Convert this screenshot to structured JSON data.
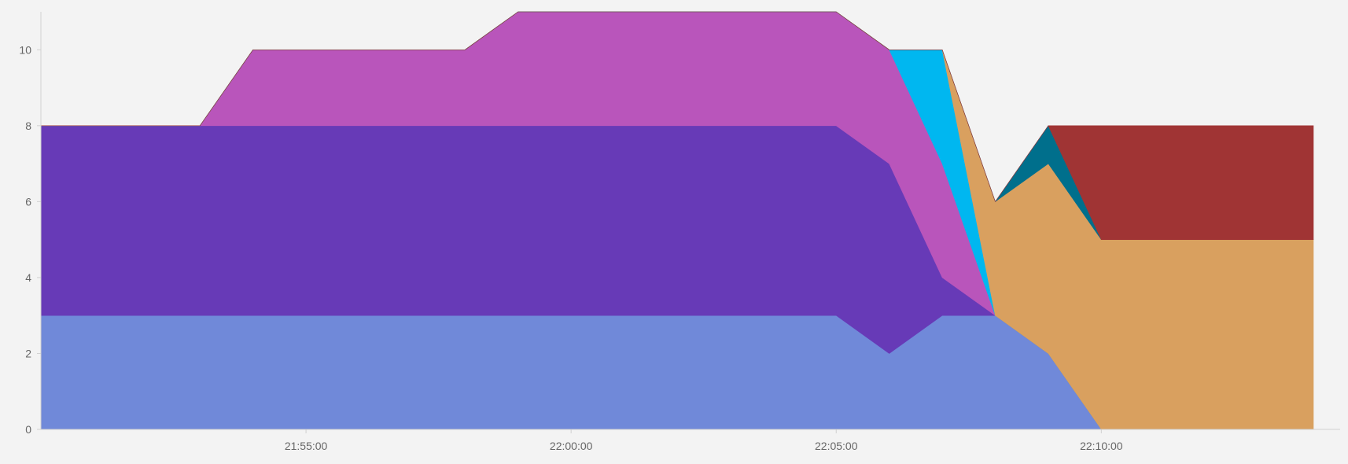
{
  "chart_data": {
    "type": "area",
    "stacked": true,
    "x": [
      "21:50:00",
      "21:51:00",
      "21:52:00",
      "21:53:00",
      "21:54:00",
      "21:55:00",
      "21:56:00",
      "21:57:00",
      "21:58:00",
      "21:59:00",
      "22:00:00",
      "22:01:00",
      "22:02:00",
      "22:03:00",
      "22:04:00",
      "22:05:00",
      "22:06:00",
      "22:07:00",
      "22:08:00",
      "22:09:00",
      "22:10:00",
      "22:11:00",
      "22:12:00",
      "22:13:00",
      "22:14:00"
    ],
    "series": [
      {
        "color": "#7089d9",
        "values": [
          3,
          3,
          3,
          3,
          3,
          3,
          3,
          3,
          3,
          3,
          3,
          3,
          3,
          3,
          3,
          3,
          2,
          3,
          3,
          2,
          0,
          0,
          0,
          0,
          0
        ]
      },
      {
        "color": "#673ab7",
        "values": [
          5,
          5,
          5,
          5,
          5,
          5,
          5,
          5,
          5,
          5,
          5,
          5,
          5,
          5,
          5,
          5,
          5,
          1,
          0,
          0,
          0,
          0,
          0,
          0,
          0
        ]
      },
      {
        "color": "#b955bb",
        "values": [
          0,
          0,
          0,
          0,
          2,
          2,
          2,
          2,
          2,
          3,
          3,
          3,
          3,
          3,
          3,
          3,
          3,
          3,
          0,
          0,
          0,
          0,
          0,
          0,
          0
        ]
      },
      {
        "color": "#00b7f0",
        "values": [
          0,
          0,
          0,
          0,
          0,
          0,
          0,
          0,
          0,
          0,
          0,
          0,
          0,
          0,
          0,
          0,
          0,
          3,
          0,
          0,
          0,
          0,
          0,
          0,
          0
        ]
      },
      {
        "color": "#d9a05f",
        "values": [
          0,
          0,
          0,
          0,
          0,
          0,
          0,
          0,
          0,
          0,
          0,
          0,
          0,
          0,
          0,
          0,
          0,
          0,
          3,
          5,
          5,
          5,
          5,
          5,
          5
        ]
      },
      {
        "color": "#006f8c",
        "values": [
          0,
          0,
          0,
          0,
          0,
          0,
          0,
          0,
          0,
          0,
          0,
          0,
          0,
          0,
          0,
          0,
          0,
          0,
          0,
          1,
          0,
          0,
          0,
          0,
          0
        ]
      },
      {
        "color": "#a03434",
        "values": [
          0,
          0,
          0,
          0,
          0,
          0,
          0,
          0,
          0,
          0,
          0,
          0,
          0,
          0,
          0,
          0,
          0,
          0,
          0,
          0,
          3,
          3,
          3,
          3,
          3
        ]
      }
    ],
    "ylim": [
      0,
      11
    ],
    "yticks": [
      "0",
      "2",
      "4",
      "6",
      "8",
      "10"
    ],
    "xticks": [
      "21:55:00",
      "22:00:00",
      "22:05:00",
      "22:10:00"
    ],
    "grid": false,
    "legend": "none"
  }
}
